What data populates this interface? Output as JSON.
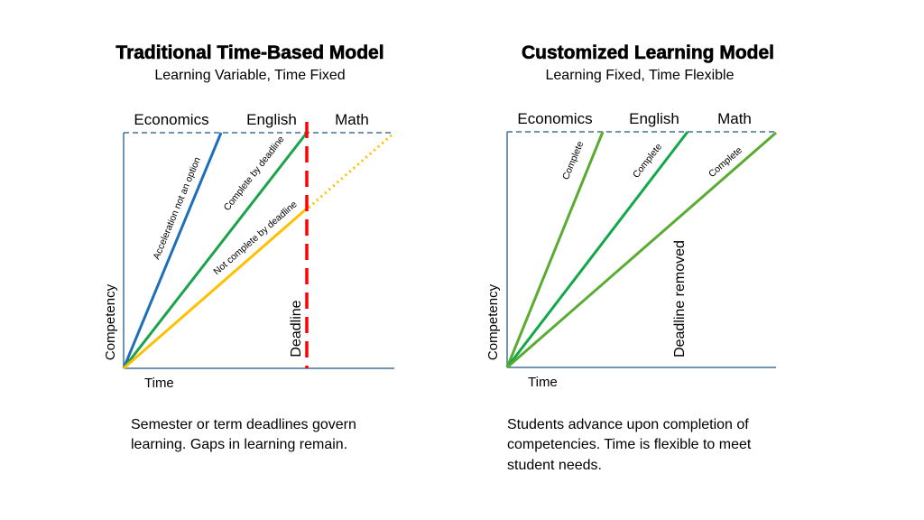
{
  "left": {
    "title": "Traditional Time-Based Model",
    "subtitle": "Learning Variable, Time Fixed",
    "subjects": [
      "Economics",
      "English",
      "Math"
    ],
    "y_axis": "Competency",
    "x_axis": "Time",
    "deadline": "Deadline",
    "line_labels": [
      "Acceleration  not an option",
      "Complete by deadline",
      "Not  complete by deadline"
    ],
    "caption": [
      "Semester or term deadlines govern",
      "learning. Gaps in learning remain."
    ]
  },
  "right": {
    "title": "Customized Learning Model",
    "subtitle": "Learning Fixed, Time Flexible",
    "subjects": [
      "Economics",
      "English",
      "Math"
    ],
    "y_axis": "Competency",
    "x_axis": "Time",
    "deadline": "Deadline removed",
    "line_labels": [
      "Complete",
      "Complete",
      "Complete"
    ],
    "caption": [
      "Students advance upon completion of",
      "competencies. Time is flexible to meet",
      "student needs."
    ]
  },
  "colors": {
    "axis": "#41719c",
    "economics_traditional": "#1f6fb8",
    "english_traditional": "#1aa34a",
    "math_traditional": "#ffc000",
    "deadline": "#ff0000",
    "custom_light_green": "#5aab32",
    "custom_green": "#12a84a"
  }
}
